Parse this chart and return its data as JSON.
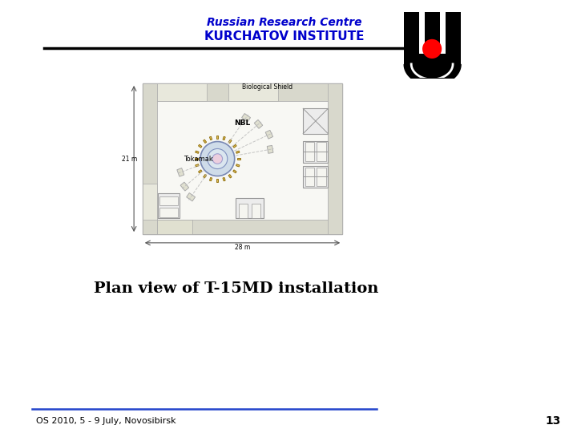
{
  "bg_color": "#ffffff",
  "title_line1": "Russian Research Centre",
  "title_line2": "KURCHATOV INSTITUTE",
  "title_color": "#0000cc",
  "footer_text": "OS 2010, 5 - 9 July, Novosibirsk",
  "footer_page": "13",
  "main_caption": "Plan view of T-15MD installation",
  "bio_shield_label": "Biological Shield",
  "nbl_label": "NBL",
  "tokamak_label": "Tokamak",
  "dim_21m": "21 m",
  "dim_28m": "28 m"
}
